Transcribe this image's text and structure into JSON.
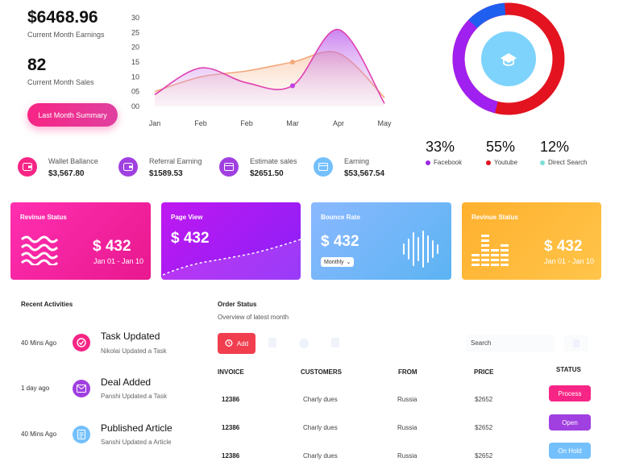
{
  "summary": {
    "earnings_value": "$6468.96",
    "earnings_label": "Current Month Earnings",
    "sales_value": "82",
    "sales_label": "Current Month Sales",
    "button_label": "Last Month Summary"
  },
  "chart_data": {
    "type": "area",
    "x": [
      "Jan",
      "Feb",
      "Feb",
      "Mar",
      "Apr",
      "May"
    ],
    "y_ticks": [
      "00",
      "05",
      "10",
      "15",
      "20",
      "25",
      "30"
    ],
    "ylim": [
      0,
      30
    ],
    "series": [
      {
        "color": "#f4a77a",
        "values": [
          5,
          10,
          12,
          15,
          18,
          3
        ]
      },
      {
        "color": "#c040e0",
        "values": [
          4,
          13,
          8,
          7,
          26,
          1
        ]
      }
    ]
  },
  "stats": [
    {
      "label": "Wallet Ballance",
      "value": "$3,567.80",
      "color": "#f72585",
      "icon": "wallet-icon"
    },
    {
      "label": "Referral Earning",
      "value": "$1589.53",
      "color": "#a040e0",
      "icon": "wallet-icon"
    },
    {
      "label": "Estimate sales",
      "value": "$2651.50",
      "color": "#a040e0",
      "icon": "card-icon"
    },
    {
      "label": "Earning",
      "value": "$53,567.54",
      "color": "#74c0fc",
      "icon": "card-icon"
    }
  ],
  "donut": {
    "center_icon": "graduation-cap-icon",
    "items": [
      {
        "pct": "33%",
        "label": "Facebook",
        "color": "#9b27e0"
      },
      {
        "pct": "55%",
        "label": "Youtube",
        "color": "#e3131f"
      },
      {
        "pct": "12%",
        "label": "Direct Search",
        "color": "#7ce0d8"
      }
    ]
  },
  "cards": [
    {
      "title": "Revinue Status",
      "value": "$ 432",
      "sub": "Jan 01 - Jan 10"
    },
    {
      "title": "Page View",
      "value": "$ 432"
    },
    {
      "title": "Bounce Rate",
      "value": "$ 432",
      "select": "Monthly"
    },
    {
      "title": "Revinue Status",
      "value": "$ 432",
      "sub": "Jan 01 - Jan 10"
    }
  ],
  "activities": {
    "title": "Recent Activities",
    "items": [
      {
        "time": "40 Mins Ago",
        "title": "Task Updated",
        "sub": "Nikolai Updated a Task",
        "color": "#f72585",
        "icon": "check-icon"
      },
      {
        "time": "1 day ago",
        "title": "Deal Added",
        "sub": "Panshi Updated a Task",
        "color": "#a040e0",
        "icon": "deal-icon"
      },
      {
        "time": "40 Mins Ago",
        "title": "Published Article",
        "sub": "Sanshi Updated a Article",
        "color": "#74c0fc",
        "icon": "article-icon"
      }
    ]
  },
  "orders": {
    "title": "Order Status",
    "subtitle": "Overview of latest month",
    "add_label": "Add",
    "search_label": "Search",
    "headers": [
      "INVOICE",
      "CUSTOMERS",
      "FROM",
      "PRICE",
      "STATUS"
    ],
    "rows": [
      {
        "invoice": "12386",
        "customer": "Charly dues",
        "from": "Russia",
        "price": "$2652",
        "status": "Process",
        "color": "#f72585"
      },
      {
        "invoice": "12386",
        "customer": "Charly dues",
        "from": "Russia",
        "price": "$2652",
        "status": "Open",
        "color": "#a040e0"
      },
      {
        "invoice": "12386",
        "customer": "Charly dues",
        "from": "Russia",
        "price": "$2652",
        "status": "On Hold",
        "color": "#74c0fc"
      }
    ]
  }
}
